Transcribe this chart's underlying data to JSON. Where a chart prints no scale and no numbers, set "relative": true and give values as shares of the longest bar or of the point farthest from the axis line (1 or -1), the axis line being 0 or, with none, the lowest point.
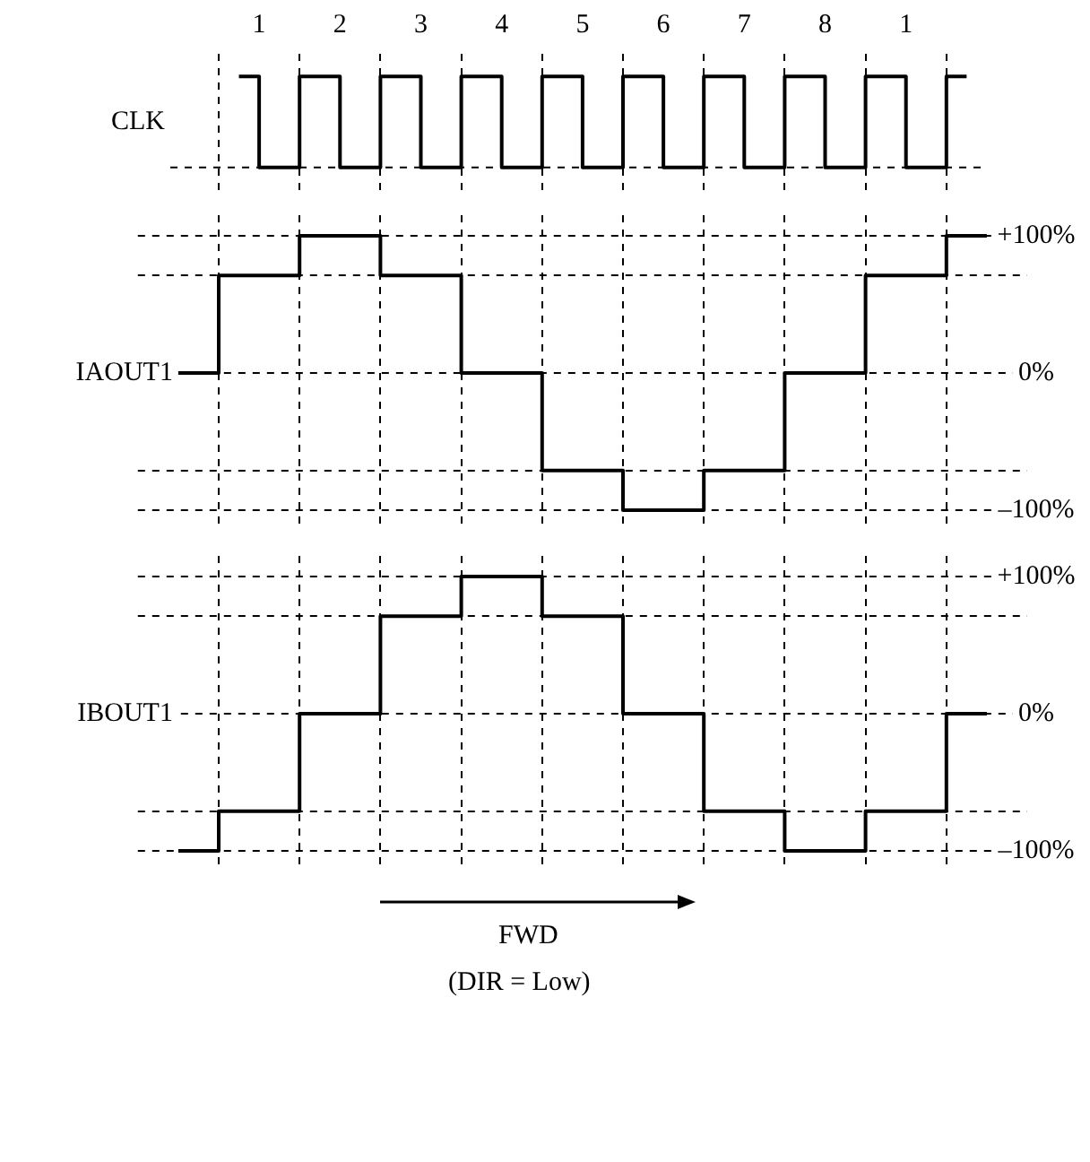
{
  "chart_data": [
    {
      "type": "step",
      "ylabel": "CLK",
      "relative": true,
      "grid": "x",
      "marker": "none",
      "line_style": "solid",
      "tick_labels": false,
      "categories": [
        null,
        null,
        null,
        null,
        null,
        null,
        null,
        null,
        null,
        null,
        null,
        null,
        null,
        null,
        null,
        null,
        null,
        null,
        null
      ],
      "annotations": [
        "1",
        "2",
        "3",
        "4",
        "5",
        "6",
        "7",
        "8",
        "1"
      ],
      "series": [
        {
          "color": "#000000",
          "values": [
            1,
            0,
            1,
            0,
            1,
            0,
            1,
            0,
            1,
            0,
            1,
            0,
            1,
            0,
            1,
            0,
            1,
            0,
            1
          ]
        }
      ]
    },
    {
      "type": "step",
      "ylabel": "IAOUT1",
      "grid": true,
      "marker": "none",
      "line_style": "solid",
      "tick_labels": "y",
      "categories": [
        null,
        null,
        null,
        null,
        null,
        null,
        null,
        null,
        null,
        null,
        null
      ],
      "ylim": [
        -115,
        115
      ],
      "yticks": [
        {
          "value": 100,
          "label": "+100%"
        },
        {
          "value": 71,
          "label": null
        },
        {
          "value": 0,
          "label": "0%"
        },
        {
          "value": -71,
          "label": null
        },
        {
          "value": -100,
          "label": "–100%"
        }
      ],
      "series": [
        {
          "color": "#000000",
          "values": [
            0,
            71,
            100,
            71,
            0,
            -71,
            -100,
            -71,
            0,
            71,
            100
          ]
        }
      ]
    },
    {
      "type": "step",
      "ylabel": "IBOUT1",
      "grid": true,
      "marker": "none",
      "line_style": "solid",
      "tick_labels": "y",
      "categories": [
        null,
        null,
        null,
        null,
        null,
        null,
        null,
        null,
        null,
        null,
        null
      ],
      "ylim": [
        -115,
        115
      ],
      "yticks": [
        {
          "value": 100,
          "label": "+100%"
        },
        {
          "value": 71,
          "label": null
        },
        {
          "value": 0,
          "label": "0%"
        },
        {
          "value": -71,
          "label": null
        },
        {
          "value": -100,
          "label": "–100%"
        }
      ],
      "annotations": [
        "FWD",
        "(DIR = Low)"
      ],
      "series": [
        {
          "color": "#000000",
          "values": [
            -100,
            -71,
            0,
            71,
            100,
            71,
            0,
            -71,
            -100,
            -71,
            0
          ]
        }
      ]
    }
  ]
}
